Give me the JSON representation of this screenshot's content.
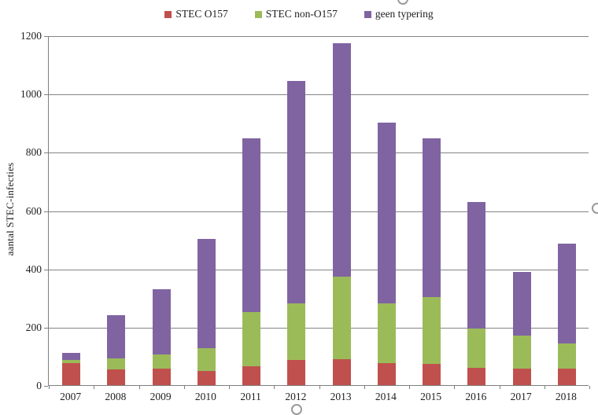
{
  "chart_data": {
    "type": "bar",
    "stacked": true,
    "title": "",
    "xlabel": "",
    "ylabel": "aantal STEC-infecties",
    "ylim": [
      0,
      1200
    ],
    "ytick_step": 200,
    "grid": true,
    "legend_position": "top",
    "categories": [
      "2007",
      "2008",
      "2009",
      "2010",
      "2011",
      "2012",
      "2013",
      "2014",
      "2015",
      "2016",
      "2017",
      "2018"
    ],
    "series": [
      {
        "name": "STEC O157",
        "color": "#C0504D",
        "values": [
          76,
          55,
          58,
          49,
          65,
          85,
          88,
          76,
          73,
          60,
          58,
          56
        ]
      },
      {
        "name": "STEC non-O157",
        "color": "#9BBB59",
        "values": [
          10,
          36,
          47,
          78,
          185,
          196,
          284,
          205,
          229,
          135,
          112,
          87
        ]
      },
      {
        "name": "geen typering",
        "color": "#8064A2",
        "values": [
          24,
          149,
          224,
          375,
          596,
          763,
          802,
          619,
          546,
          433,
          219,
          343
        ]
      }
    ],
    "stack_totals": [
      110,
      240,
      329,
      502,
      846,
      1044,
      1174,
      900,
      848,
      628,
      389,
      486
    ]
  },
  "colors": {
    "background": "#ffffff",
    "gridline": "#848484",
    "axis": "#7f7f7f",
    "text": "#1f1f1f",
    "handle_border": "#9a9a9a",
    "handle_fill": "#ffffff"
  },
  "selection_handles": [
    "top-center",
    "right-center",
    "bottom-center"
  ]
}
